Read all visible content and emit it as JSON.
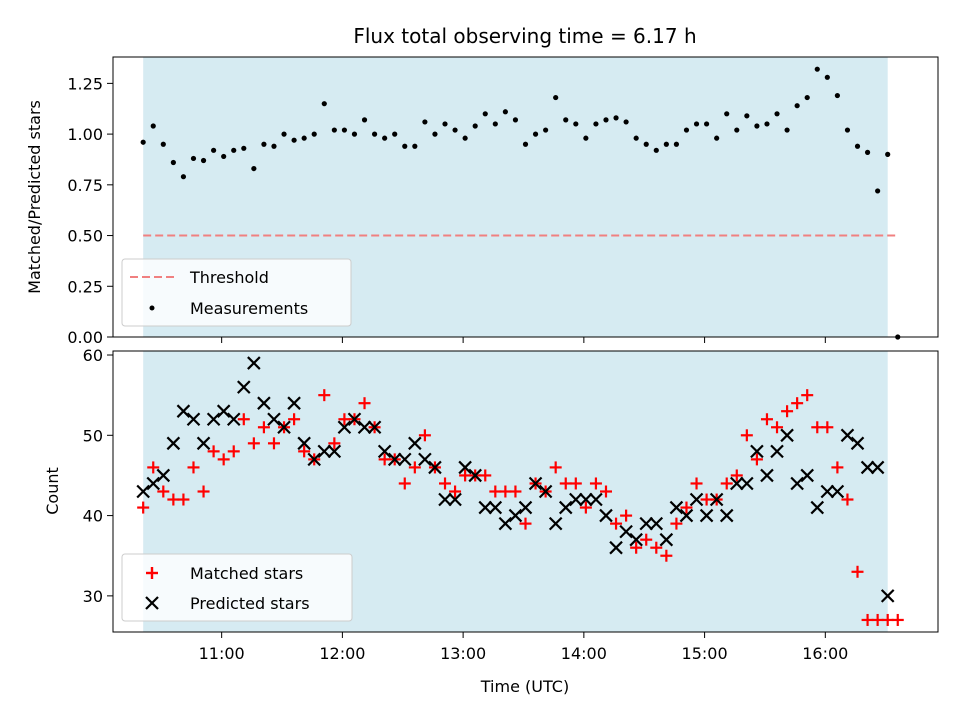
{
  "chart_data": [
    {
      "type": "scatter",
      "title": "Flux total observing time = 6.17 h",
      "xlabel": "",
      "ylabel": "Matched/Predicted stars",
      "ylim": [
        0,
        1.38
      ],
      "yticks": [
        "0.00",
        "0.25",
        "0.50",
        "0.75",
        "1.00",
        "1.25"
      ],
      "ytick_values": [
        0,
        0.25,
        0.5,
        0.75,
        1.0,
        1.25
      ],
      "threshold": 0.5,
      "threshold_range": [
        "10:21",
        "16:36"
      ],
      "threshold_color": "#f08080",
      "observing_window": [
        "10:21",
        "16:31"
      ],
      "window_color": "#add8e6",
      "legend_position": "lower-left",
      "legend": [
        "Threshold",
        "Measurements"
      ],
      "series": [
        {
          "name": "Measurements",
          "color": "#000000",
          "x": [
            "10:21",
            "10:26",
            "10:31",
            "10:36",
            "10:41",
            "10:46",
            "10:51",
            "10:56",
            "11:01",
            "11:06",
            "11:11",
            "11:16",
            "11:21",
            "11:26",
            "11:31",
            "11:36",
            "11:41",
            "11:46",
            "11:51",
            "11:56",
            "12:01",
            "12:06",
            "12:11",
            "12:16",
            "12:21",
            "12:26",
            "12:31",
            "12:36",
            "12:41",
            "12:46",
            "12:51",
            "12:56",
            "13:01",
            "13:06",
            "13:11",
            "13:16",
            "13:21",
            "13:26",
            "13:31",
            "13:36",
            "13:41",
            "13:46",
            "13:51",
            "13:56",
            "14:01",
            "14:06",
            "14:11",
            "14:16",
            "14:21",
            "14:26",
            "14:31",
            "14:36",
            "14:41",
            "14:46",
            "14:51",
            "14:56",
            "15:01",
            "15:06",
            "15:11",
            "15:16",
            "15:21",
            "15:26",
            "15:31",
            "15:36",
            "15:41",
            "15:46",
            "15:51",
            "15:56",
            "16:01",
            "16:06",
            "16:11",
            "16:16",
            "16:21",
            "16:26",
            "16:31",
            "16:36"
          ],
          "y": [
            0.96,
            1.04,
            0.95,
            0.86,
            0.79,
            0.88,
            0.87,
            0.92,
            0.89,
            0.92,
            0.93,
            0.83,
            0.95,
            0.94,
            1.0,
            0.97,
            0.98,
            1.0,
            1.15,
            1.02,
            1.02,
            1.0,
            1.07,
            1.0,
            0.98,
            1.0,
            0.94,
            0.94,
            1.06,
            1.0,
            1.05,
            1.02,
            0.98,
            1.04,
            1.1,
            1.05,
            1.11,
            1.07,
            0.95,
            1.0,
            1.02,
            1.18,
            1.07,
            1.05,
            0.98,
            1.05,
            1.07,
            1.08,
            1.06,
            0.98,
            0.95,
            0.92,
            0.95,
            0.95,
            1.02,
            1.05,
            1.05,
            0.98,
            1.1,
            1.02,
            1.09,
            1.04,
            1.05,
            1.1,
            1.02,
            1.14,
            1.18,
            1.32,
            1.28,
            1.19,
            1.02,
            0.94,
            0.91,
            0.72,
            0.9,
            0.0
          ]
        }
      ]
    },
    {
      "type": "scatter",
      "title": "",
      "xlabel": "Time (UTC)",
      "ylabel": "Count",
      "ylim": [
        25.5,
        60.5
      ],
      "yticks": [
        "30",
        "40",
        "50",
        "60"
      ],
      "ytick_values": [
        30,
        40,
        50,
        60
      ],
      "xlim": [
        "10:06",
        "16:56"
      ],
      "xticks": [
        "11:00",
        "12:00",
        "13:00",
        "14:00",
        "15:00",
        "16:00"
      ],
      "observing_window": [
        "10:21",
        "16:31"
      ],
      "window_color": "#add8e6",
      "legend_position": "lower-left",
      "legend": [
        "Matched stars",
        "Predicted stars"
      ],
      "series": [
        {
          "name": "Matched stars",
          "color": "#ff0000",
          "marker": "plus",
          "x": [
            "10:21",
            "10:26",
            "10:31",
            "10:36",
            "10:41",
            "10:46",
            "10:51",
            "10:56",
            "11:01",
            "11:06",
            "11:11",
            "11:16",
            "11:21",
            "11:26",
            "11:31",
            "11:36",
            "11:41",
            "11:46",
            "11:51",
            "11:56",
            "12:01",
            "12:06",
            "12:11",
            "12:16",
            "12:21",
            "12:26",
            "12:31",
            "12:36",
            "12:41",
            "12:46",
            "12:51",
            "12:56",
            "13:01",
            "13:06",
            "13:11",
            "13:16",
            "13:21",
            "13:26",
            "13:31",
            "13:36",
            "13:41",
            "13:46",
            "13:51",
            "13:56",
            "14:01",
            "14:06",
            "14:11",
            "14:16",
            "14:21",
            "14:26",
            "14:31",
            "14:36",
            "14:41",
            "14:46",
            "14:51",
            "14:56",
            "15:01",
            "15:06",
            "15:11",
            "15:16",
            "15:21",
            "15:26",
            "15:31",
            "15:36",
            "15:41",
            "15:46",
            "15:51",
            "15:56",
            "16:01",
            "16:06",
            "16:11",
            "16:16",
            "16:21",
            "16:26",
            "16:31",
            "16:36"
          ],
          "y": [
            41,
            46,
            43,
            42,
            42,
            46,
            43,
            48,
            47,
            48,
            52,
            49,
            51,
            49,
            51,
            52,
            48,
            47,
            55,
            49,
            52,
            52,
            54,
            51,
            47,
            47,
            44,
            46,
            50,
            46,
            44,
            43,
            45,
            45,
            45,
            43,
            43,
            43,
            39,
            44,
            43,
            46,
            44,
            44,
            41,
            44,
            43,
            39,
            40,
            36,
            37,
            36,
            35,
            39,
            41,
            44,
            42,
            42,
            44,
            45,
            50,
            47,
            52,
            51,
            53,
            54,
            55,
            51,
            51,
            46,
            42,
            33,
            27,
            27,
            27,
            27
          ]
        },
        {
          "name": "Predicted stars",
          "color": "#000000",
          "marker": "x",
          "x": [
            "10:21",
            "10:26",
            "10:31",
            "10:36",
            "10:41",
            "10:46",
            "10:51",
            "10:56",
            "11:01",
            "11:06",
            "11:11",
            "11:16",
            "11:21",
            "11:26",
            "11:31",
            "11:36",
            "11:41",
            "11:46",
            "11:51",
            "11:56",
            "12:01",
            "12:06",
            "12:11",
            "12:16",
            "12:21",
            "12:26",
            "12:31",
            "12:36",
            "12:41",
            "12:46",
            "12:51",
            "12:56",
            "13:01",
            "13:06",
            "13:11",
            "13:16",
            "13:21",
            "13:26",
            "13:31",
            "13:36",
            "13:41",
            "13:46",
            "13:51",
            "13:56",
            "14:01",
            "14:06",
            "14:11",
            "14:16",
            "14:21",
            "14:26",
            "14:31",
            "14:36",
            "14:41",
            "14:46",
            "14:51",
            "14:56",
            "15:01",
            "15:06",
            "15:11",
            "15:16",
            "15:21",
            "15:26",
            "15:31",
            "15:36",
            "15:41",
            "15:46",
            "15:51",
            "15:56",
            "16:01",
            "16:06",
            "16:11",
            "16:16",
            "16:21",
            "16:26",
            "16:31"
          ],
          "y": [
            43,
            44,
            45,
            49,
            53,
            52,
            49,
            52,
            53,
            52,
            56,
            59,
            54,
            52,
            51,
            54,
            49,
            47,
            48,
            48,
            51,
            52,
            51,
            51,
            48,
            47,
            47,
            49,
            47,
            46,
            42,
            42,
            46,
            45,
            41,
            41,
            39,
            40,
            41,
            44,
            43,
            39,
            41,
            42,
            42,
            42,
            40,
            36,
            38,
            37,
            39,
            39,
            37,
            41,
            40,
            42,
            40,
            42,
            40,
            44,
            44,
            48,
            45,
            48,
            50,
            44,
            45,
            41,
            43,
            43,
            50,
            49,
            46,
            46,
            30
          ]
        }
      ]
    }
  ]
}
